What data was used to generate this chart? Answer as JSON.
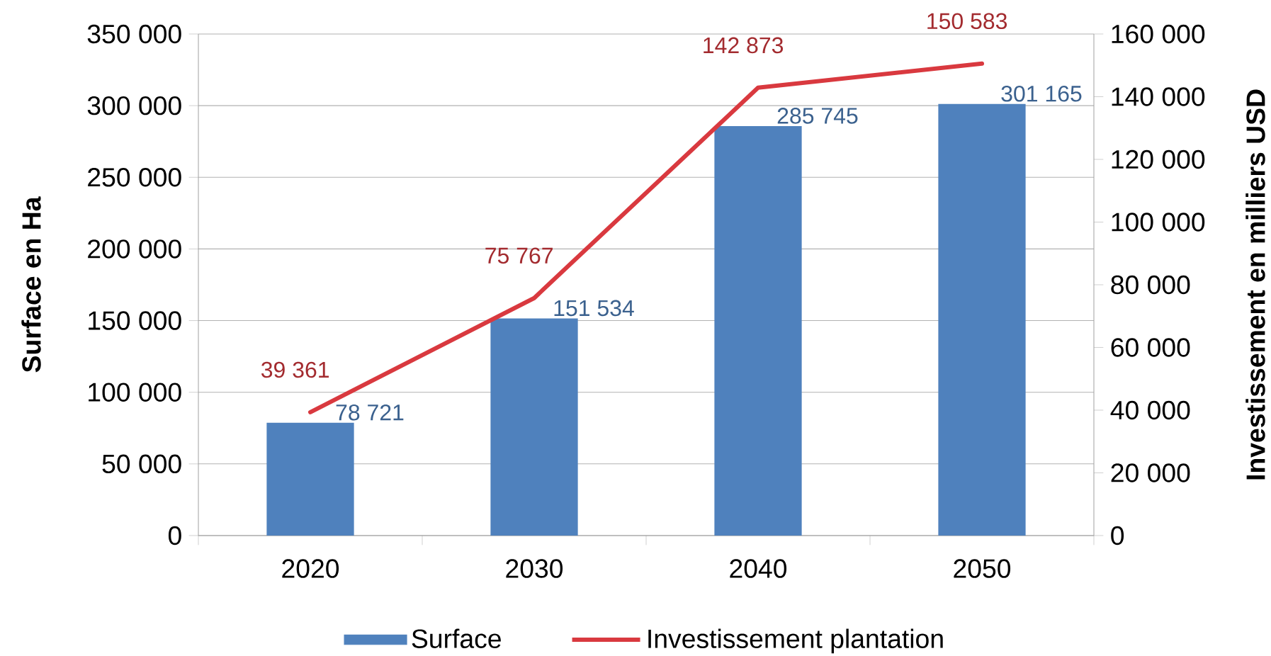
{
  "chart_data": {
    "type": "bar",
    "ylabel": "Surface en Ha",
    "y2label": "Investissement en milliers USD",
    "categories": [
      "2020",
      "2030",
      "2040",
      "2050"
    ],
    "series": [
      {
        "name": "Surface",
        "color": "#4f81bd",
        "values": [
          78721,
          151534,
          285745,
          301165
        ],
        "value_labels": [
          "78 721",
          "151 534",
          "285 745",
          "301 165"
        ]
      },
      {
        "name": "Investissement plantation",
        "type": "line",
        "axis": "y2",
        "color": "#d9393f",
        "values": [
          39361,
          75767,
          142873,
          150583
        ],
        "value_labels": [
          "39 361",
          "75 767",
          "142 873",
          "150 583"
        ]
      }
    ],
    "ylim": [
      0,
      350000
    ],
    "yticks": [
      0,
      {
        "value": 50000,
        "label": "50 000"
      },
      {
        "value": 100000,
        "label": "100 000"
      },
      {
        "value": 150000,
        "label": "150 000"
      },
      {
        "value": 200000,
        "label": "200 000"
      },
      {
        "value": 250000,
        "label": "250 000"
      },
      {
        "value": 300000,
        "label": "300 000"
      },
      {
        "value": 350000,
        "label": "350 000"
      }
    ],
    "y2lim": [
      0,
      160000
    ],
    "y2ticks": [
      0,
      {
        "value": 20000,
        "label": "20 000"
      },
      {
        "value": 40000,
        "label": "40 000"
      },
      {
        "value": 60000,
        "label": "60 000"
      },
      {
        "value": 80000,
        "label": "80 000"
      },
      {
        "value": 100000,
        "label": "100 000"
      },
      {
        "value": 120000,
        "label": "120 000"
      },
      {
        "value": 140000,
        "label": "140 000"
      },
      {
        "value": 160000,
        "label": "160 000"
      }
    ],
    "grid": "y",
    "legend": "bottom"
  }
}
